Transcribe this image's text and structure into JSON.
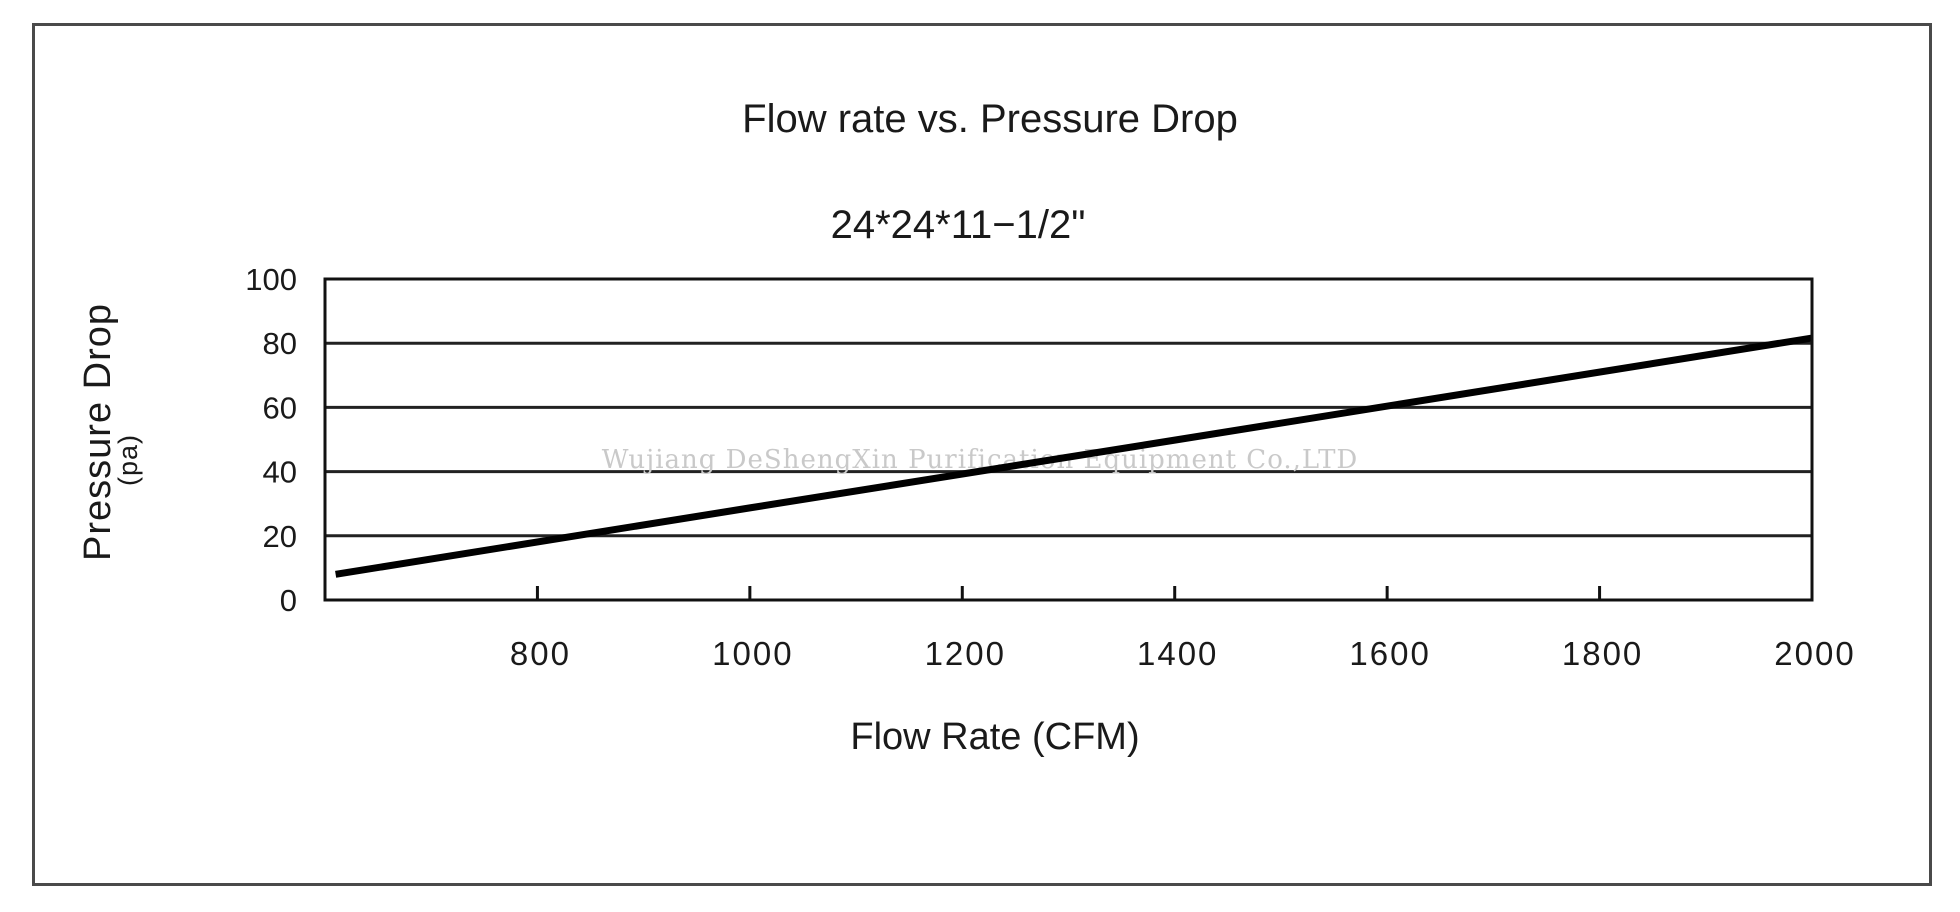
{
  "chart_data": {
    "type": "line",
    "title": "Flow rate vs. Pressure Drop",
    "subtitle": "24*24*11−1/2\"",
    "xlabel": "Flow Rate (CFM)",
    "ylabel": "Pressure Drop",
    "yunit": "(pa)",
    "xlim": [
      600,
      2000
    ],
    "ylim": [
      0,
      100
    ],
    "x_ticks": [
      800,
      1000,
      1200,
      1400,
      1600,
      1800,
      2000
    ],
    "y_ticks": [
      0,
      20,
      40,
      60,
      80,
      100
    ],
    "grid": "horizontal",
    "series": [
      {
        "x": [
          610,
          1000,
          1400,
          2000
        ],
        "y": [
          8,
          28.7,
          49.8,
          81.6
        ]
      }
    ],
    "watermark": "Wujiang DeShengXin  Purification  Equipment  Co.,LTD"
  }
}
